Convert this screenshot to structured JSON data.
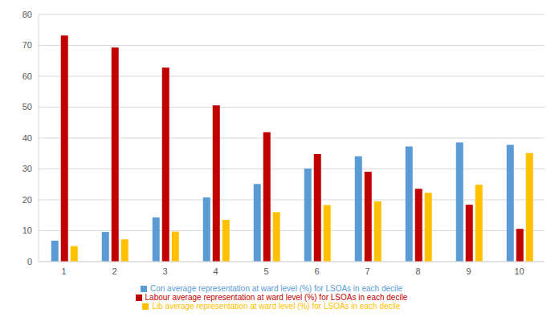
{
  "chart_data": {
    "type": "bar",
    "categories": [
      "1",
      "2",
      "3",
      "4",
      "5",
      "6",
      "7",
      "8",
      "9",
      "10"
    ],
    "series": [
      {
        "name": "Con average representation at ward level (%) for LSOAs in each decile",
        "color": "#5b9bd5",
        "values": [
          6.8,
          9.6,
          14.3,
          20.8,
          25.1,
          30.1,
          34.1,
          37.3,
          38.6,
          37.8
        ]
      },
      {
        "name": "Labour average representation at ward level (%) for LSOAs in each decile",
        "color": "#c00000",
        "values": [
          73.2,
          69.3,
          62.8,
          50.6,
          41.9,
          34.8,
          29.1,
          23.6,
          18.4,
          10.6
        ]
      },
      {
        "name": "Lib average representation at ward level (%) for LSOAs in each decile",
        "color": "#ffc000",
        "values": [
          5.0,
          7.2,
          9.7,
          13.5,
          16.0,
          18.3,
          19.5,
          22.3,
          24.9,
          35.1
        ]
      }
    ],
    "ylim": [
      0,
      80
    ],
    "yticks": [
      0,
      10,
      20,
      30,
      40,
      50,
      60,
      70,
      80
    ],
    "grid": true,
    "legend": "bottom"
  }
}
